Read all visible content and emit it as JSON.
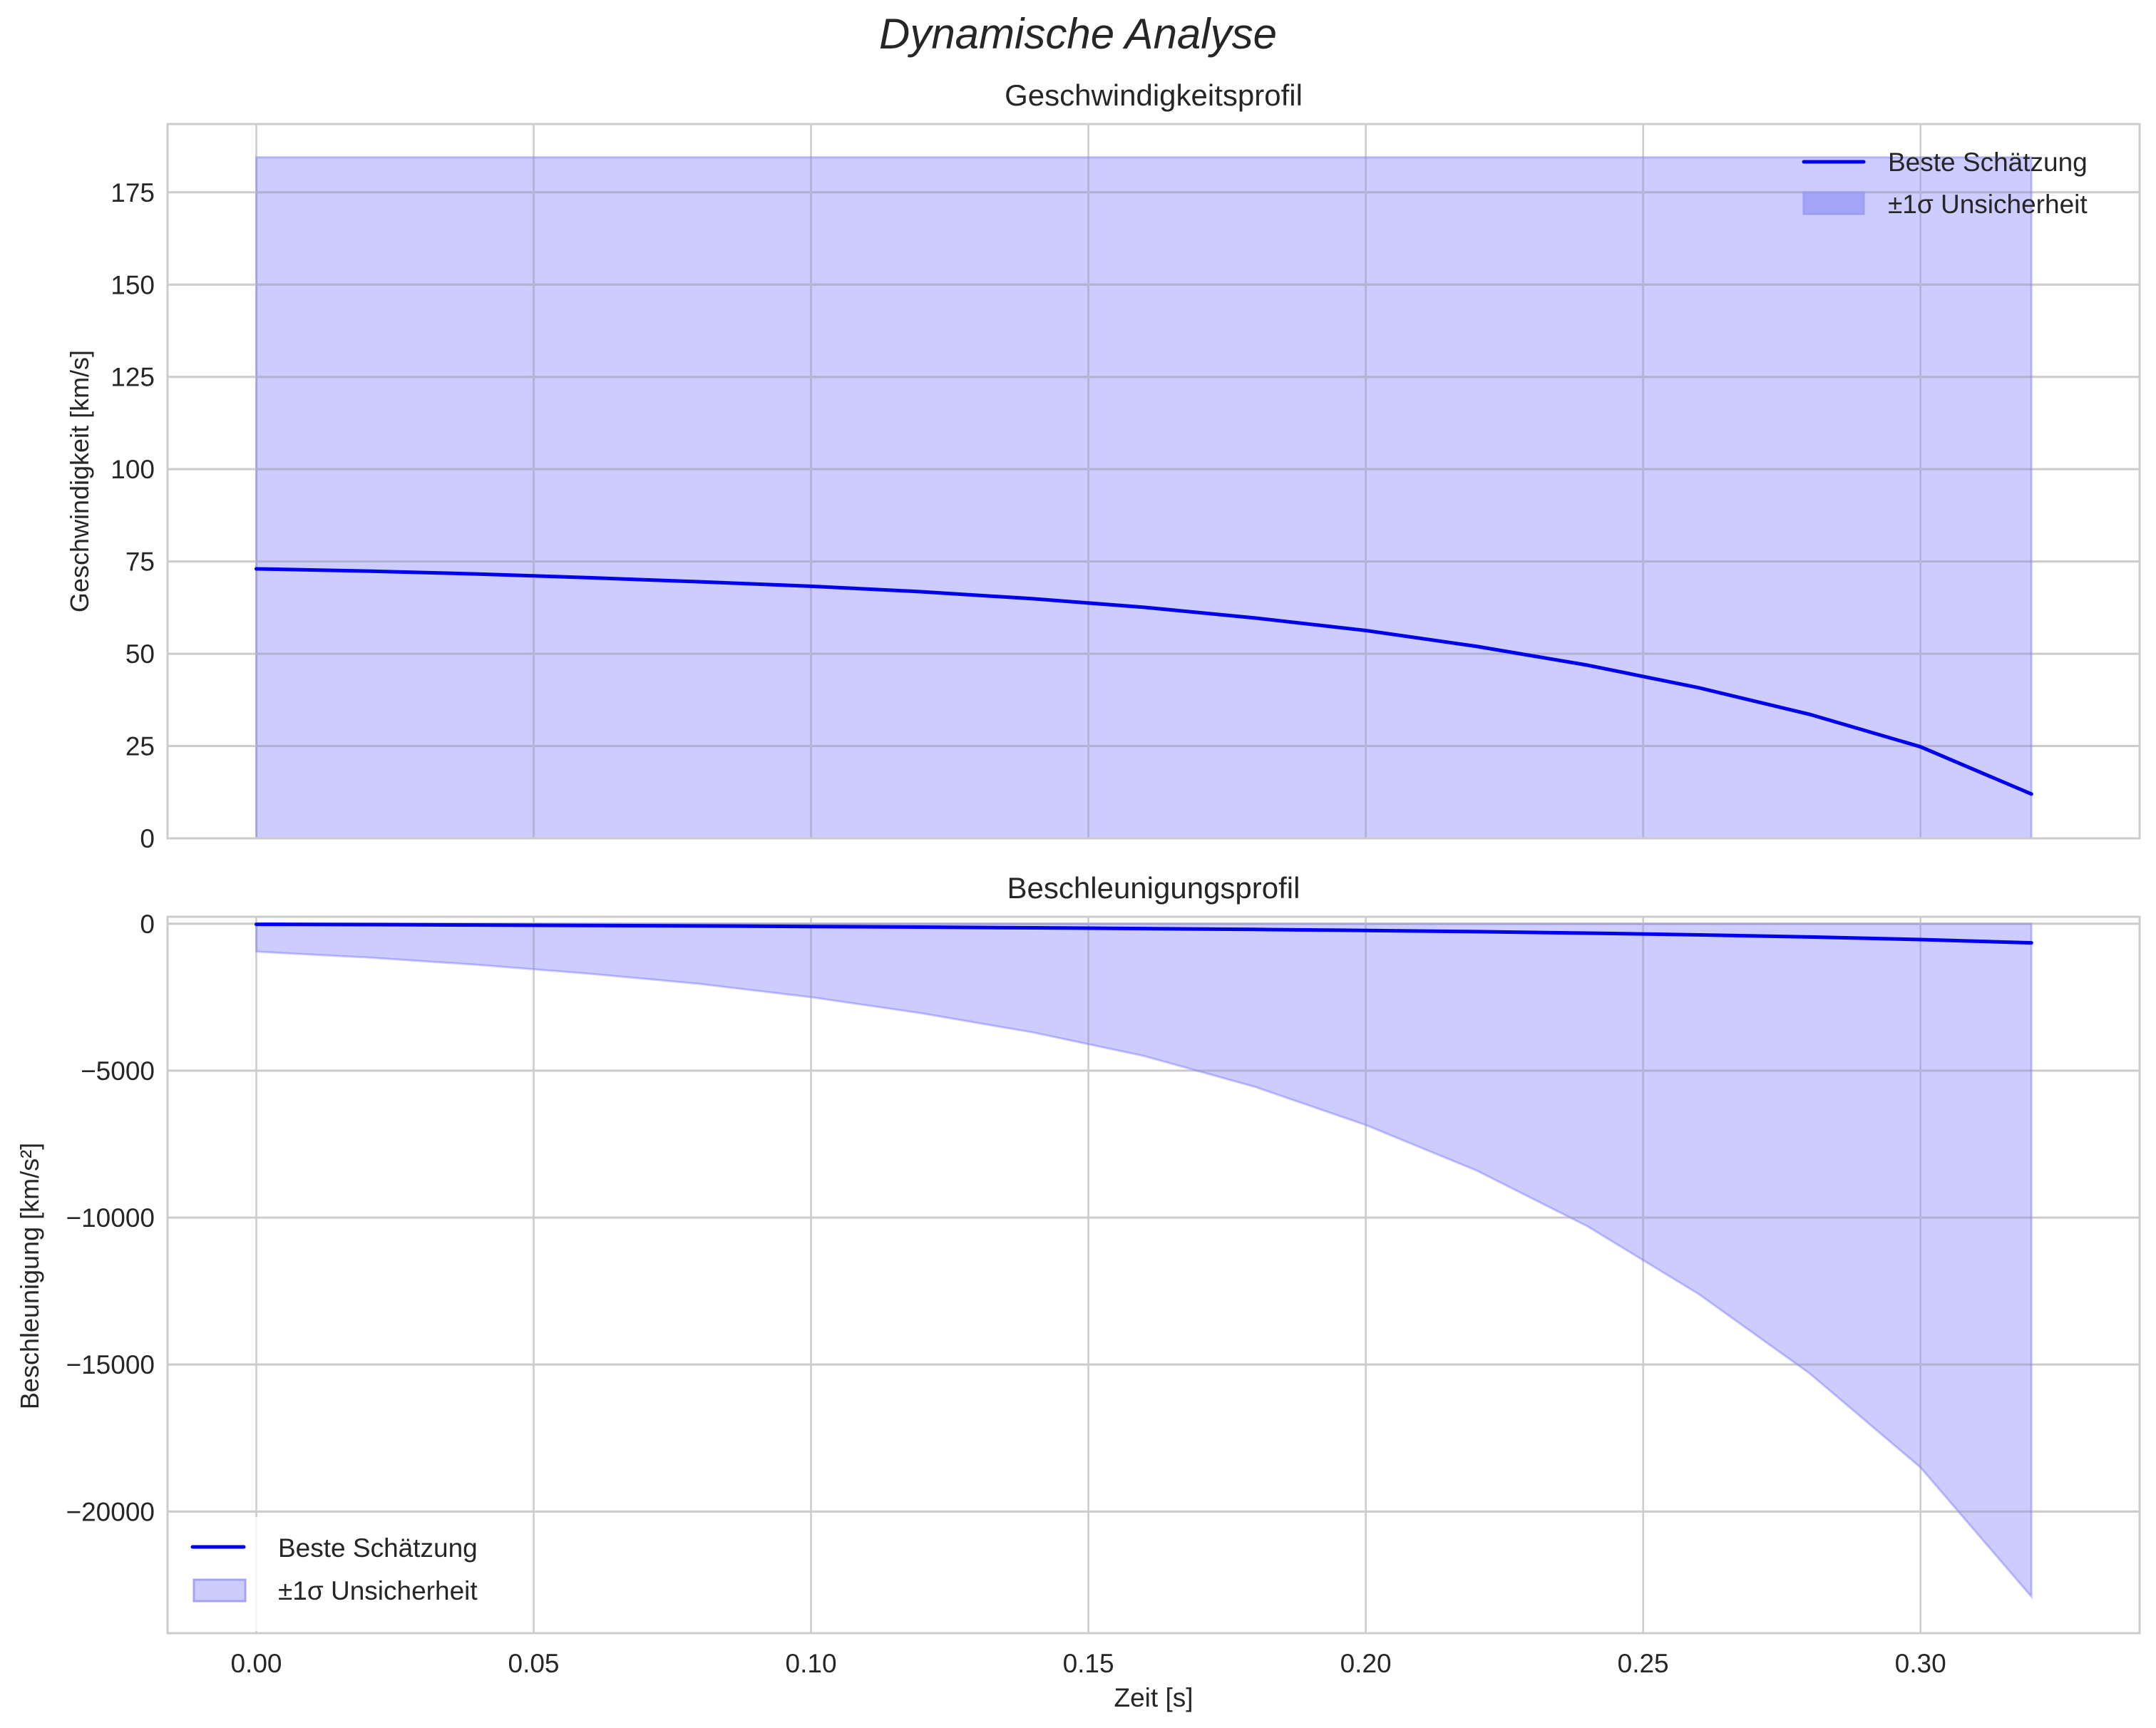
{
  "figure": {
    "title": "Dynamische Analyse"
  },
  "chart_data": [
    {
      "type": "line",
      "title": "Geschwindigkeitsprofil",
      "xlabel": "",
      "ylabel": "Geschwindigkeit [km/s]",
      "xlim": [
        -0.016,
        0.3395
      ],
      "ylim": [
        0,
        193.5
      ],
      "xticks": [
        0.0,
        0.05,
        0.1,
        0.15,
        0.2,
        0.25,
        0.3
      ],
      "xtick_labels": [
        "",
        "",
        "",
        "",
        "",
        "",
        ""
      ],
      "yticks": [
        0,
        25,
        50,
        75,
        100,
        125,
        150,
        175
      ],
      "ytick_labels": [
        "0",
        "25",
        "50",
        "75",
        "100",
        "125",
        "150",
        "175"
      ],
      "grid": true,
      "legend_position": "upper right",
      "x": [
        0.0,
        0.02,
        0.04,
        0.06,
        0.08,
        0.1,
        0.12,
        0.14,
        0.16,
        0.18,
        0.2,
        0.22,
        0.24,
        0.26,
        0.28,
        0.3,
        0.32
      ],
      "series": [
        {
          "name": "Beste Schätzung",
          "kind": "line",
          "color": "#0000ee",
          "values": [
            73.0,
            72.4,
            71.6,
            70.6,
            69.5,
            68.3,
            66.8,
            64.9,
            62.6,
            59.7,
            56.3,
            52.0,
            46.9,
            40.8,
            33.6,
            24.8,
            12.0
          ]
        },
        {
          "name": "±1σ Unsicherheit",
          "kind": "band",
          "color": "#0000ff",
          "alpha": 0.2,
          "lower": [
            0,
            0,
            0,
            0,
            0,
            0,
            0,
            0,
            0,
            0,
            0,
            0,
            0,
            0,
            0,
            0,
            0
          ],
          "upper": [
            184.5,
            184.5,
            184.5,
            184.5,
            184.5,
            184.5,
            184.5,
            184.5,
            184.5,
            184.5,
            184.5,
            184.5,
            184.5,
            184.5,
            184.5,
            184.5,
            184.5
          ]
        }
      ]
    },
    {
      "type": "line",
      "title": "Beschleunigungsprofil",
      "xlabel": "Zeit [s]",
      "ylabel": "Beschleunigung [km/s²]",
      "xlim": [
        -0.016,
        0.3395
      ],
      "ylim": [
        -24140,
        237
      ],
      "xticks": [
        0.0,
        0.05,
        0.1,
        0.15,
        0.2,
        0.25,
        0.3
      ],
      "xtick_labels": [
        "0.00",
        "0.05",
        "0.10",
        "0.15",
        "0.20",
        "0.25",
        "0.30"
      ],
      "yticks": [
        0,
        -5000,
        -10000,
        -15000,
        -20000
      ],
      "ytick_labels": [
        "0",
        "−5000",
        "−10000",
        "−15000",
        "−20000"
      ],
      "grid": true,
      "legend_position": "lower left",
      "x": [
        0.0,
        0.02,
        0.04,
        0.06,
        0.08,
        0.1,
        0.12,
        0.14,
        0.16,
        0.18,
        0.2,
        0.22,
        0.24,
        0.26,
        0.28,
        0.3,
        0.32
      ],
      "series": [
        {
          "name": "Beste Schätzung",
          "kind": "line",
          "color": "#0000ee",
          "values": [
            -20,
            -30,
            -45,
            -60,
            -75,
            -95,
            -115,
            -140,
            -165,
            -195,
            -230,
            -270,
            -320,
            -380,
            -450,
            -540,
            -650
          ]
        },
        {
          "name": "±1σ Unsicherheit",
          "kind": "band",
          "color": "#0000ff",
          "alpha": 0.2,
          "lower": [
            -950,
            -1150,
            -1400,
            -1700,
            -2050,
            -2500,
            -3050,
            -3700,
            -4500,
            -5550,
            -6850,
            -8400,
            -10300,
            -12600,
            -15300,
            -18500,
            -22900
          ],
          "upper": [
            0,
            0,
            0,
            0,
            0,
            0,
            0,
            0,
            0,
            0,
            0,
            0,
            0,
            0,
            0,
            0,
            0
          ]
        }
      ]
    }
  ],
  "legend_top": {
    "items": [
      {
        "label": "Beste Schätzung",
        "swatch": "line"
      },
      {
        "label": "±1σ Unsicherheit",
        "swatch": "patch"
      }
    ]
  },
  "legend_bottom": {
    "items": [
      {
        "label": "Beste Schätzung",
        "swatch": "line"
      },
      {
        "label": "±1σ Unsicherheit",
        "swatch": "patch"
      }
    ]
  },
  "colors": {
    "line": "#0000ee",
    "band_fill": "#ccccfb",
    "band_edge": "#9c9cf0",
    "grid": "#cccccc",
    "text": "#262626"
  }
}
